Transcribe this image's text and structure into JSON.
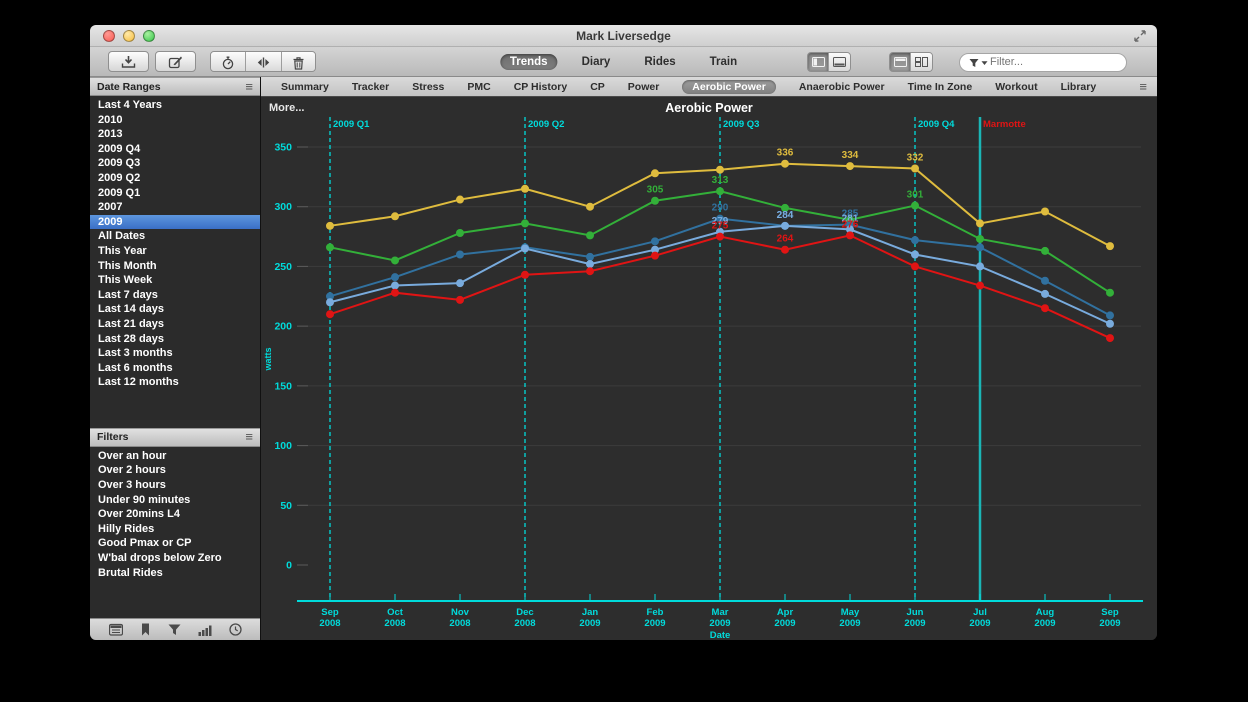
{
  "window": {
    "title": "Mark Liversedge"
  },
  "toolbar": {
    "left_buttons": [
      "download",
      "compose",
      "stopwatch",
      "split",
      "trash"
    ],
    "view_tabs": [
      {
        "label": "Trends",
        "selected": true
      },
      {
        "label": "Diary",
        "selected": false
      },
      {
        "label": "Rides",
        "selected": false
      },
      {
        "label": "Train",
        "selected": false
      }
    ],
    "layout_toggles": [
      {
        "name": "sidebar-panel",
        "selected": true
      },
      {
        "name": "bottom-panel",
        "selected": false
      }
    ],
    "style_toggles": [
      {
        "name": "tiled-view",
        "selected": true
      },
      {
        "name": "tabbed-view",
        "selected": false
      }
    ],
    "filter": {
      "placeholder": "Filter..."
    }
  },
  "sidebar": {
    "date_ranges": {
      "title": "Date Ranges",
      "selected": "2009",
      "items": [
        "Last 4 Years",
        "2010",
        "2013",
        "2009 Q4",
        "2009 Q3",
        "2009 Q2",
        "2009 Q1",
        "2007",
        "2009",
        "All Dates",
        "This Year",
        "This Month",
        "This Week",
        "Last 7 days",
        "Last 14 days",
        "Last 21 days",
        "Last 28 days",
        "Last 3 months",
        "Last 6 months",
        "Last 12 months"
      ]
    },
    "filters": {
      "title": "Filters",
      "items": [
        "Over an hour",
        "Over 2 hours",
        "Over 3 hours",
        "Under 90 minutes",
        "Over 20mins L4",
        "Hilly Rides",
        "Good Pmax or CP",
        "W'bal drops below Zero",
        "Brutal Rides"
      ]
    },
    "bottom_icons": [
      "calendar",
      "bookmark",
      "funnel",
      "chart-bars",
      "clock"
    ]
  },
  "chart_tabs": {
    "selected": "Aerobic Power",
    "items": [
      "Summary",
      "Tracker",
      "Stress",
      "PMC",
      "CP History",
      "CP",
      "Power",
      "Aerobic Power",
      "Anaerobic Power",
      "Time In Zone",
      "Workout",
      "Library"
    ]
  },
  "chart": {
    "more_label": "More...",
    "title": "Aerobic Power"
  },
  "chart_data": {
    "type": "line",
    "title": "Aerobic Power",
    "xlabel": "Date",
    "ylabel": "watts",
    "ylim": [
      0,
      350
    ],
    "yticks": [
      0,
      50,
      100,
      150,
      200,
      250,
      300,
      350
    ],
    "grid": true,
    "legend": "none",
    "axis_color": "#00dbdb",
    "x": [
      "Sep 2008",
      "Oct 2008",
      "Nov 2008",
      "Dec 2008",
      "Jan 2009",
      "Feb 2009",
      "Mar 2009",
      "Apr 2009",
      "May 2009",
      "Jun 2009",
      "Jul 2009",
      "Aug 2009",
      "Sep 2009"
    ],
    "series": [
      {
        "name": "series-yellow",
        "color": "#dfbc3e",
        "values": [
          284,
          292,
          306,
          315,
          300,
          328,
          331,
          336,
          334,
          332,
          286,
          296,
          267
        ],
        "point_labels": {
          "7": "336",
          "8": "334",
          "9": "332"
        }
      },
      {
        "name": "series-green",
        "color": "#33b039",
        "values": [
          266,
          255,
          278,
          286,
          276,
          305,
          313,
          299,
          289,
          301,
          273,
          263,
          228
        ],
        "point_labels": {
          "5": "305",
          "6": "313",
          "9": "301"
        }
      },
      {
        "name": "series-dark-blue",
        "color": "#31719f",
        "values": [
          225,
          241,
          260,
          266,
          258,
          271,
          290,
          284,
          285,
          272,
          266,
          238,
          209
        ],
        "point_labels": {
          "6": "290",
          "7": "284",
          "8": "285"
        }
      },
      {
        "name": "series-light-blue",
        "color": "#79abdd",
        "values": [
          220,
          234,
          236,
          265,
          252,
          264,
          279,
          284,
          281,
          260,
          250,
          227,
          202
        ],
        "point_labels": {
          "6": "279",
          "7": "284",
          "8": "281"
        }
      },
      {
        "name": "series-red",
        "color": "#e01414",
        "values": [
          210,
          228,
          222,
          243,
          246,
          259,
          275,
          264,
          276,
          250,
          234,
          215,
          190
        ],
        "point_labels": {
          "6": "275",
          "7": "264",
          "8": "276"
        }
      }
    ],
    "vertical_markers": [
      {
        "label": "2009 Q1",
        "x_index": 0,
        "style": "dashed",
        "color": "#00dbdb",
        "label_color": "#00dbdb"
      },
      {
        "label": "2009 Q2",
        "x_index": 3,
        "style": "dashed",
        "color": "#00dbdb",
        "label_color": "#00dbdb"
      },
      {
        "label": "2009 Q3",
        "x_index": 6,
        "style": "dashed",
        "color": "#00dbdb",
        "label_color": "#00dbdb"
      },
      {
        "label": "2009 Q4",
        "x_index": 9,
        "style": "dashed",
        "color": "#00dbdb",
        "label_color": "#00dbdb"
      },
      {
        "label": "Marmotte",
        "x_index": 10,
        "style": "solid",
        "color": "#1ab5b5",
        "label_color": "#e01414"
      }
    ]
  }
}
